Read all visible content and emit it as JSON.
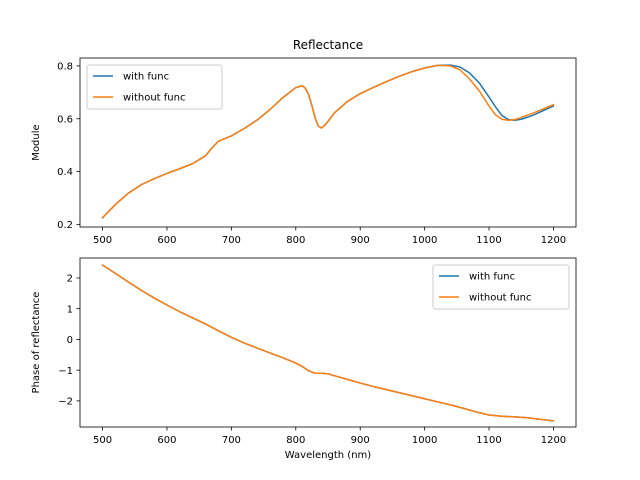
{
  "chart_data": [
    {
      "type": "line",
      "title": "Reflectance",
      "xlabel": "",
      "ylabel": "Module",
      "xlim": [
        465,
        1235
      ],
      "ylim": [
        0.19,
        0.83
      ],
      "xticks": [
        500,
        600,
        700,
        800,
        900,
        1000,
        1100,
        1200
      ],
      "yticks": [
        0.2,
        0.4,
        0.6,
        0.8
      ],
      "ytick_labels": [
        "0.2",
        "0.4",
        "0.6",
        "0.8"
      ],
      "grid": false,
      "legend_position": "top-left",
      "series": [
        {
          "name": "with func",
          "color": "#1f77b4",
          "x": [
            500,
            520,
            540,
            560,
            580,
            600,
            620,
            640,
            660,
            670,
            680,
            700,
            720,
            740,
            760,
            780,
            800,
            810,
            815,
            820,
            825,
            830,
            835,
            840,
            845,
            850,
            860,
            880,
            900,
            920,
            940,
            960,
            980,
            1000,
            1020,
            1040,
            1055,
            1070,
            1085,
            1100,
            1110,
            1120,
            1130,
            1140,
            1150,
            1160,
            1170,
            1180,
            1190,
            1200
          ],
          "y": [
            0.225,
            0.275,
            0.318,
            0.35,
            0.373,
            0.393,
            0.411,
            0.43,
            0.46,
            0.49,
            0.515,
            0.535,
            0.563,
            0.595,
            0.635,
            0.68,
            0.718,
            0.725,
            0.715,
            0.69,
            0.65,
            0.603,
            0.572,
            0.565,
            0.575,
            0.59,
            0.622,
            0.665,
            0.695,
            0.718,
            0.74,
            0.76,
            0.778,
            0.792,
            0.802,
            0.803,
            0.796,
            0.773,
            0.735,
            0.682,
            0.645,
            0.612,
            0.597,
            0.594,
            0.598,
            0.606,
            0.615,
            0.626,
            0.637,
            0.648
          ]
        },
        {
          "name": "without func",
          "color": "#ff7f0e",
          "x": [
            500,
            520,
            540,
            560,
            580,
            600,
            620,
            640,
            660,
            670,
            680,
            700,
            720,
            740,
            760,
            780,
            800,
            810,
            815,
            820,
            825,
            830,
            835,
            840,
            845,
            850,
            860,
            880,
            900,
            920,
            940,
            960,
            980,
            1000,
            1020,
            1040,
            1055,
            1070,
            1085,
            1100,
            1110,
            1120,
            1130,
            1140,
            1150,
            1160,
            1170,
            1180,
            1190,
            1200
          ],
          "y": [
            0.225,
            0.275,
            0.318,
            0.35,
            0.373,
            0.393,
            0.411,
            0.43,
            0.46,
            0.49,
            0.515,
            0.535,
            0.563,
            0.595,
            0.635,
            0.68,
            0.718,
            0.725,
            0.715,
            0.69,
            0.65,
            0.603,
            0.572,
            0.565,
            0.575,
            0.59,
            0.622,
            0.665,
            0.695,
            0.718,
            0.74,
            0.76,
            0.778,
            0.792,
            0.802,
            0.8,
            0.785,
            0.75,
            0.705,
            0.648,
            0.615,
            0.598,
            0.594,
            0.597,
            0.605,
            0.614,
            0.623,
            0.633,
            0.643,
            0.653
          ]
        }
      ]
    },
    {
      "type": "line",
      "title": "",
      "xlabel": "Wavelength (nm)",
      "ylabel": "Phase of reflectance",
      "xlim": [
        465,
        1235
      ],
      "ylim": [
        -2.85,
        2.65
      ],
      "xticks": [
        500,
        600,
        700,
        800,
        900,
        1000,
        1100,
        1200
      ],
      "yticks": [
        -2,
        -1,
        0,
        1,
        2
      ],
      "ytick_labels": [
        "−2",
        "−1",
        "0",
        "1",
        "2"
      ],
      "grid": false,
      "legend_position": "top-right",
      "series": [
        {
          "name": "with func",
          "color": "#1f77b4",
          "x": [
            500,
            520,
            540,
            560,
            580,
            600,
            620,
            640,
            660,
            680,
            700,
            720,
            740,
            760,
            780,
            800,
            810,
            820,
            830,
            840,
            850,
            860,
            880,
            900,
            920,
            940,
            960,
            980,
            1000,
            1020,
            1040,
            1060,
            1080,
            1100,
            1120,
            1140,
            1160,
            1180,
            1200
          ],
          "y": [
            2.42,
            2.15,
            1.87,
            1.6,
            1.35,
            1.12,
            0.9,
            0.7,
            0.5,
            0.28,
            0.07,
            -0.12,
            -0.28,
            -0.44,
            -0.6,
            -0.77,
            -0.88,
            -1.02,
            -1.1,
            -1.1,
            -1.12,
            -1.18,
            -1.3,
            -1.42,
            -1.53,
            -1.63,
            -1.73,
            -1.83,
            -1.93,
            -2.03,
            -2.13,
            -2.24,
            -2.36,
            -2.46,
            -2.5,
            -2.52,
            -2.55,
            -2.6,
            -2.65
          ]
        },
        {
          "name": "without func",
          "color": "#ff7f0e",
          "x": [
            500,
            520,
            540,
            560,
            580,
            600,
            620,
            640,
            660,
            680,
            700,
            720,
            740,
            760,
            780,
            800,
            810,
            820,
            830,
            840,
            850,
            860,
            880,
            900,
            920,
            940,
            960,
            980,
            1000,
            1020,
            1040,
            1060,
            1080,
            1100,
            1120,
            1140,
            1160,
            1180,
            1200
          ],
          "y": [
            2.42,
            2.15,
            1.87,
            1.6,
            1.35,
            1.12,
            0.9,
            0.7,
            0.5,
            0.28,
            0.07,
            -0.12,
            -0.28,
            -0.44,
            -0.6,
            -0.77,
            -0.88,
            -1.02,
            -1.1,
            -1.1,
            -1.12,
            -1.18,
            -1.3,
            -1.42,
            -1.53,
            -1.63,
            -1.73,
            -1.83,
            -1.93,
            -2.03,
            -2.13,
            -2.24,
            -2.36,
            -2.46,
            -2.5,
            -2.52,
            -2.55,
            -2.6,
            -2.65
          ]
        }
      ]
    }
  ]
}
